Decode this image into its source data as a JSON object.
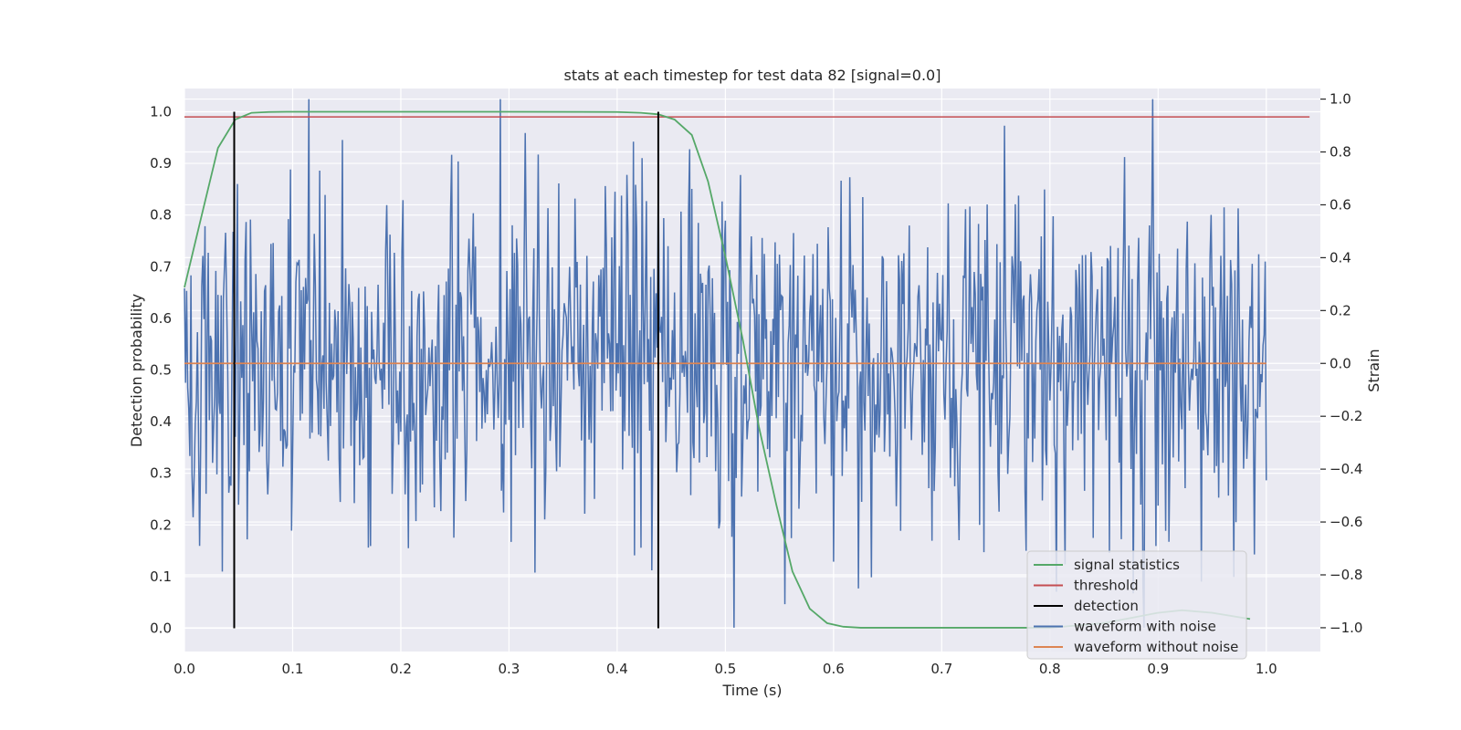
{
  "chart_data": {
    "type": "line",
    "title": "stats at each timestep for test data 82 [signal=0.0]",
    "xlabel": "Time (s)",
    "ylabel_left": "Detection probability",
    "ylabel_right": "Strain",
    "xlim": [
      0.0,
      1.05
    ],
    "ylim_left": [
      -0.045,
      1.045
    ],
    "ylim_right": [
      -1.09,
      1.04
    ],
    "x_ticks": [
      "0.0",
      "0.1",
      "0.2",
      "0.3",
      "0.4",
      "0.5",
      "0.6",
      "0.7",
      "0.8",
      "0.9",
      "1.0"
    ],
    "y_ticks_left": [
      "0.0",
      "0.1",
      "0.2",
      "0.3",
      "0.4",
      "0.5",
      "0.6",
      "0.7",
      "0.8",
      "0.9",
      "1.0"
    ],
    "y_ticks_right": [
      "−1.0",
      "−0.8",
      "−0.6",
      "−0.4",
      "−0.2",
      "0.0",
      "0.2",
      "0.4",
      "0.6",
      "0.8",
      "1.0"
    ],
    "grid": true,
    "legend_position": "lower-right",
    "series": [
      {
        "name": "signal statistics",
        "axis": "left",
        "color": "#55a868",
        "x": [
          0.0,
          0.016,
          0.031,
          0.047,
          0.062,
          0.078,
          0.094,
          0.2,
          0.3,
          0.4,
          0.422,
          0.438,
          0.453,
          0.469,
          0.484,
          0.5,
          0.516,
          0.531,
          0.547,
          0.562,
          0.578,
          0.594,
          0.609,
          0.625,
          0.7,
          0.8,
          0.85,
          0.9,
          0.922,
          0.95,
          0.985
        ],
        "y": [
          0.66,
          0.8,
          0.93,
          0.985,
          0.998,
          0.9995,
          1.0,
          1.0,
          1.0,
          0.9995,
          0.998,
          0.995,
          0.985,
          0.955,
          0.865,
          0.72,
          0.56,
          0.39,
          0.24,
          0.11,
          0.038,
          0.01,
          0.003,
          0.001,
          0.001,
          0.001,
          0.01,
          0.03,
          0.035,
          0.03,
          0.018
        ]
      },
      {
        "name": "threshold",
        "axis": "left",
        "color": "#c44e52",
        "x": [
          0.0,
          1.04
        ],
        "y": [
          0.99,
          0.99
        ]
      },
      {
        "name": "detection",
        "axis": "left",
        "color": "#000000",
        "segments": [
          {
            "x": 0.046,
            "y": [
              0.0,
              1.0
            ]
          },
          {
            "x": 0.438,
            "y": [
              0.0,
              1.0
            ]
          }
        ]
      },
      {
        "name": "waveform with noise",
        "axis": "right",
        "color": "#4c72b0",
        "x_range": [
          0.0,
          1.0
        ],
        "y_min": -1.0,
        "y_max": 1.0,
        "y_std": 0.33
      },
      {
        "name": "waveform without noise",
        "axis": "right",
        "color": "#dd8452",
        "x": [
          0.0,
          1.0
        ],
        "y": [
          0.0,
          0.0
        ]
      }
    ]
  }
}
